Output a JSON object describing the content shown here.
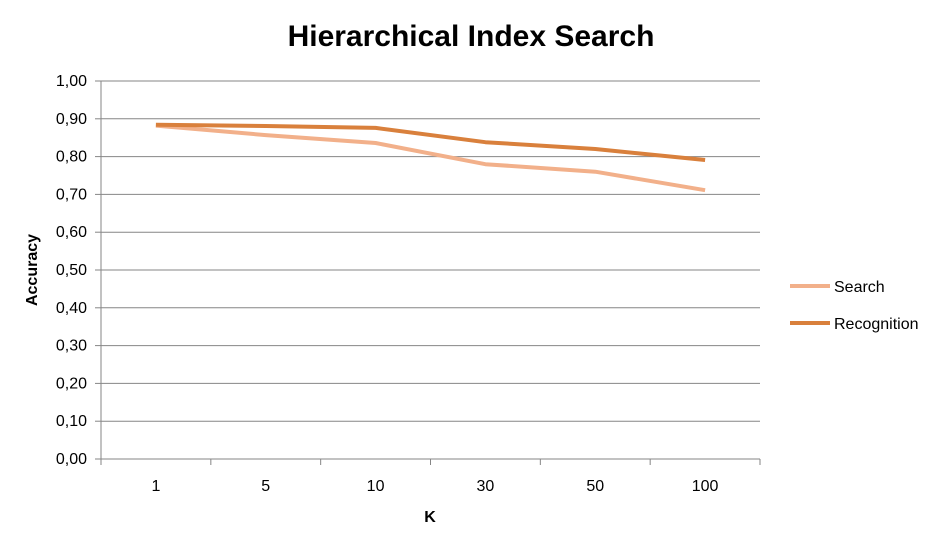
{
  "chart_data": {
    "type": "line",
    "title": "Hierarchical Index Search",
    "xlabel": "K",
    "ylabel": "Accuracy",
    "categories": [
      "1",
      "5",
      "10",
      "30",
      "50",
      "100"
    ],
    "y_ticks": [
      "0,00",
      "0,10",
      "0,20",
      "0,30",
      "0,40",
      "0,50",
      "0,60",
      "0,70",
      "0,80",
      "0,90",
      "1,00"
    ],
    "ylim": [
      0,
      1
    ],
    "grid": "horizontal",
    "legend_position": "right",
    "series": [
      {
        "name": "Search",
        "color": "#F2B08A",
        "values": [
          0.882,
          0.857,
          0.836,
          0.78,
          0.76,
          0.711
        ]
      },
      {
        "name": "Recognition",
        "color": "#D9803C",
        "values": [
          0.884,
          0.881,
          0.876,
          0.838,
          0.82,
          0.791
        ]
      }
    ]
  }
}
